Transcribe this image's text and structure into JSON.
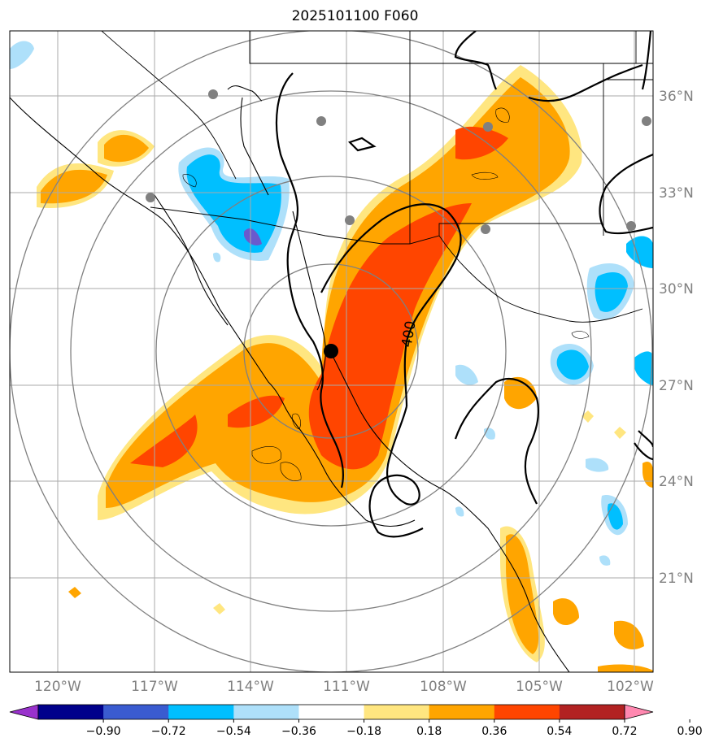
{
  "title": "2025101100 F060",
  "lat_labels": [
    "36°N",
    "33°N",
    "30°N",
    "27°N",
    "24°N",
    "21°N"
  ],
  "lon_labels": [
    "120°W",
    "117°W",
    "114°W",
    "111°W",
    "108°W",
    "105°W",
    "102°W"
  ],
  "contour_label": "400",
  "colorbar": {
    "ticks": [
      "−0.90",
      "−0.72",
      "−0.54",
      "−0.36",
      "−0.18",
      "0.18",
      "0.36",
      "0.54",
      "0.72",
      "0.90"
    ],
    "colors": [
      "#9932cc",
      "#00008b",
      "#3a5bd0",
      "#00bfff",
      "#aee0fa",
      "#ffffff",
      "#ffe680",
      "#ffa500",
      "#ff4500",
      "#b22222",
      "#ff88b0"
    ]
  },
  "colors": {
    "pos_light": "#ffe680",
    "pos_mid": "#ffa500",
    "pos_strong": "#ff4500",
    "neg_light": "#aee0fa",
    "neg_mid": "#00bfff",
    "neg_strong": "#6a5acd",
    "grid": "#aaaaaa",
    "ring": "#808080",
    "station": "#808080"
  }
}
